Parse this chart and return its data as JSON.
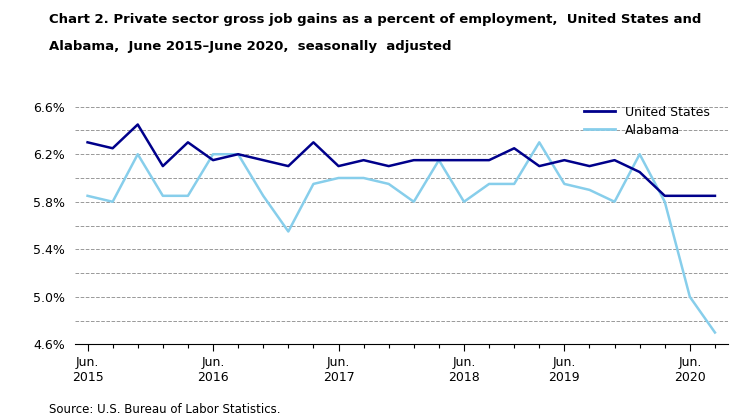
{
  "title_line1": "Chart 2. Private sector gross job gains as a percent of employment,  United States and",
  "title_line2": "Alabama,  June 2015–June 2020,  seasonally  adjusted",
  "source": "Source: U.S. Bureau of Labor Statistics.",
  "us_data": [
    6.3,
    6.25,
    6.45,
    6.1,
    6.3,
    6.15,
    6.2,
    6.15,
    6.1,
    6.3,
    6.1,
    6.15,
    6.1,
    6.15,
    6.15,
    6.15,
    6.15,
    6.25,
    6.1,
    6.15,
    6.1,
    6.15,
    6.05,
    5.85,
    5.85,
    5.85
  ],
  "al_data": [
    5.85,
    5.8,
    6.2,
    5.85,
    5.85,
    6.2,
    6.2,
    5.85,
    5.55,
    5.95,
    6.0,
    6.0,
    5.95,
    5.8,
    6.15,
    5.8,
    5.95,
    5.95,
    6.3,
    5.95,
    5.9,
    5.8,
    6.2,
    5.8,
    5.0,
    4.7
  ],
  "jun_positions": [
    0,
    5,
    10,
    15,
    19,
    24
  ],
  "jun_labels": [
    "Jun.\n2015",
    "Jun.\n2016",
    "Jun.\n2017",
    "Jun.\n2018",
    "Jun.\n2019",
    "Jun.\n2020"
  ],
  "ylim": [
    4.6,
    6.72
  ],
  "yticks": [
    4.6,
    4.8,
    5.0,
    5.2,
    5.4,
    5.6,
    5.8,
    6.0,
    6.2,
    6.4,
    6.6
  ],
  "ytick_labels": [
    "4.6%",
    "",
    "5.0%",
    "",
    "5.4%",
    "",
    "5.8%",
    "",
    "6.2%",
    "",
    "6.6%"
  ],
  "us_color": "#00008B",
  "al_color": "#87CEEB",
  "legend_us": "United States",
  "legend_al": "Alabama",
  "figsize": [
    7.5,
    4.2
  ],
  "dpi": 100
}
